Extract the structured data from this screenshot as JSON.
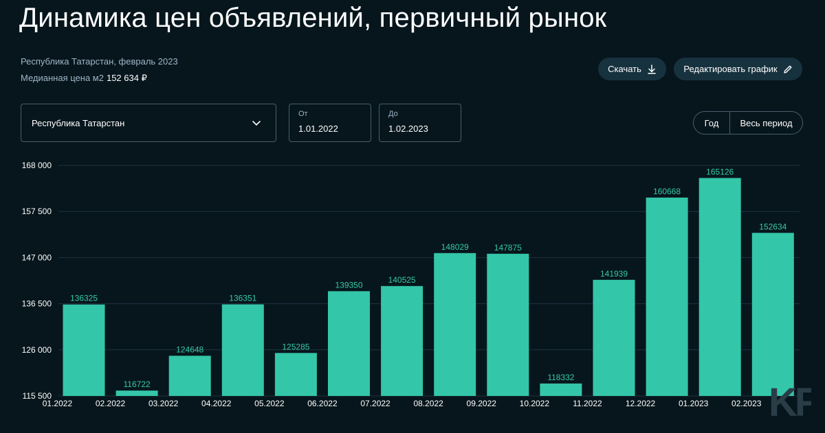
{
  "header": {
    "title": "Динамика цен объявлений, первичный рынок",
    "subtitle": "Республика Татарстан, февраль 2023",
    "median_label": "Медианная цена м2",
    "median_value": "152 634 ₽"
  },
  "actions": {
    "download_label": "Скачать",
    "edit_label": "Редактировать график"
  },
  "filters": {
    "region": "Республика Татарстан",
    "from_label": "От",
    "from_value": "1.01.2022",
    "to_label": "До",
    "to_value": "1.02.2023",
    "period_year": "Год",
    "period_all": "Весь период"
  },
  "watermark": "KF",
  "colors": {
    "bar": "#34c6a9",
    "label": "#37c9a8",
    "grid": "#1f3340",
    "background": "#07161d"
  },
  "chart_data": {
    "type": "bar",
    "categories": [
      "01.2022",
      "02.2022",
      "03.2022",
      "04.2022",
      "05.2022",
      "06.2022",
      "07.2022",
      "08.2022",
      "09.2022",
      "10.2022",
      "11.2022",
      "12.2022",
      "01.2023",
      "02.2023"
    ],
    "values": [
      136325,
      116722,
      124648,
      136351,
      125285,
      139350,
      140525,
      148029,
      147875,
      118332,
      141939,
      160668,
      165126,
      152634
    ],
    "yticks": [
      "115 500",
      "126 000",
      "136 500",
      "147 000",
      "157 500",
      "168 000"
    ],
    "ylim": [
      115500,
      168000
    ],
    "grid": true,
    "legend": "none"
  }
}
